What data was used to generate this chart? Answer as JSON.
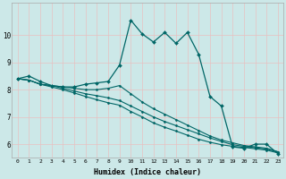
{
  "xlabel": "Humidex (Indice chaleur)",
  "background_color": "#cce8e8",
  "line_color": "#006666",
  "grid_color": "#e8c0c0",
  "xlim": [
    -0.5,
    23.5
  ],
  "ylim": [
    5.5,
    11.2
  ],
  "xtick_labels": [
    "0",
    "1",
    "2",
    "3",
    "4",
    "5",
    "6",
    "7",
    "8",
    "9",
    "10",
    "11",
    "12",
    "13",
    "14",
    "15",
    "16",
    "17",
    "18",
    "19",
    "20",
    "21",
    "22",
    "23"
  ],
  "yticks": [
    6,
    7,
    8,
    9,
    10
  ],
  "series": [
    [
      8.4,
      8.5,
      8.3,
      8.15,
      8.1,
      8.1,
      8.2,
      8.25,
      8.3,
      8.9,
      10.55,
      10.05,
      9.75,
      10.1,
      9.7,
      10.1,
      9.3,
      7.75,
      7.4,
      5.9,
      5.85,
      6.0,
      6.0,
      5.65
    ],
    [
      8.4,
      8.35,
      8.2,
      8.15,
      8.1,
      8.05,
      8.0,
      8.0,
      8.05,
      8.15,
      7.85,
      7.55,
      7.3,
      7.1,
      6.9,
      6.7,
      6.5,
      6.3,
      6.15,
      6.05,
      5.95,
      5.9,
      5.85,
      5.72
    ],
    [
      8.4,
      8.35,
      8.2,
      8.15,
      8.05,
      7.95,
      7.85,
      7.78,
      7.7,
      7.6,
      7.4,
      7.2,
      7.0,
      6.83,
      6.68,
      6.53,
      6.38,
      6.23,
      6.1,
      5.98,
      5.92,
      5.87,
      5.82,
      5.72
    ],
    [
      8.4,
      8.35,
      8.2,
      8.1,
      8.0,
      7.88,
      7.75,
      7.63,
      7.52,
      7.43,
      7.2,
      7.0,
      6.78,
      6.62,
      6.48,
      6.33,
      6.18,
      6.07,
      5.98,
      5.92,
      5.88,
      5.83,
      5.78,
      5.68
    ]
  ]
}
